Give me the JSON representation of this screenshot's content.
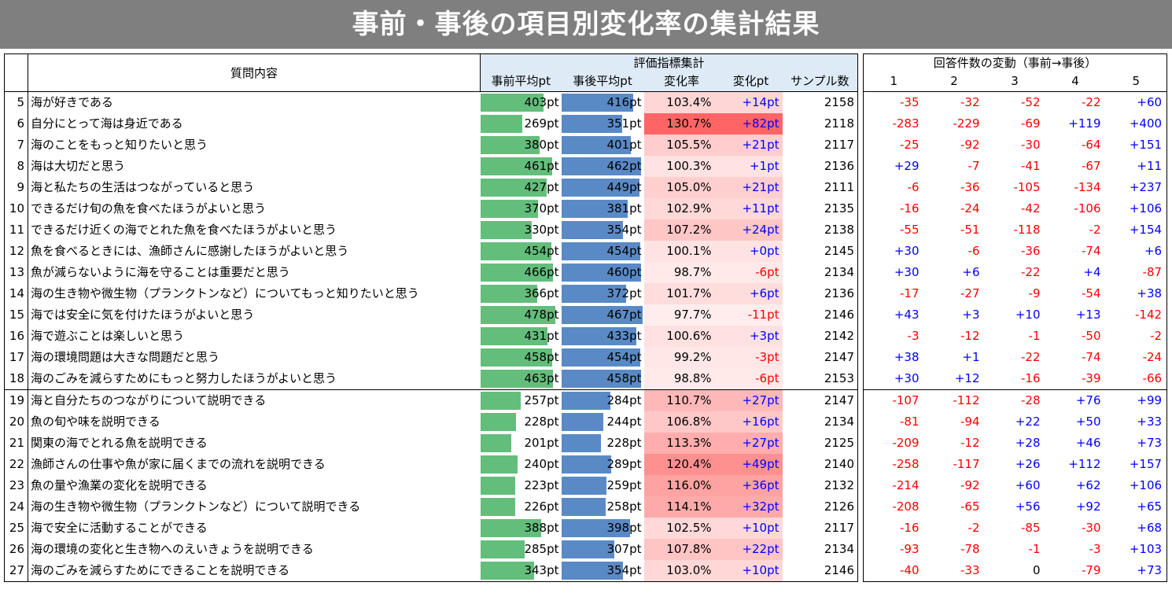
{
  "title": "事前・事後の項目別変化率の集計結果",
  "headers": {
    "question": "質問内容",
    "eval_group": "評価指標集計",
    "pre_avg": "事前平均pt",
    "post_avg": "事後平均pt",
    "rate": "変化率",
    "diff": "変化pt",
    "sample": "サンプル数",
    "response_group": "回答件数の変動（事前→事後）",
    "scale": [
      "1",
      "2",
      "3",
      "4",
      "5"
    ]
  },
  "rows": [
    {
      "no": "5",
      "q": "海が好きである",
      "pre": "403pt",
      "pre_v": 403,
      "post": "416pt",
      "post_v": 416,
      "rate": "103.4%",
      "rate_v": 103.4,
      "diff": "+14pt",
      "n": "2158",
      "r": [
        "-35",
        "-32",
        "-52",
        "-22",
        "+60"
      ]
    },
    {
      "no": "6",
      "q": "自分にとって海は身近である",
      "pre": "269pt",
      "pre_v": 269,
      "post": "351pt",
      "post_v": 351,
      "rate": "130.7%",
      "rate_v": 130.7,
      "diff": "+82pt",
      "n": "2118",
      "r": [
        "-283",
        "-229",
        "-69",
        "+119",
        "+400"
      ]
    },
    {
      "no": "7",
      "q": "海のことをもっと知りたいと思う",
      "pre": "380pt",
      "pre_v": 380,
      "post": "401pt",
      "post_v": 401,
      "rate": "105.5%",
      "rate_v": 105.5,
      "diff": "+21pt",
      "n": "2117",
      "r": [
        "-25",
        "-92",
        "-30",
        "-64",
        "+151"
      ]
    },
    {
      "no": "8",
      "q": "海は大切だと思う",
      "pre": "461pt",
      "pre_v": 461,
      "post": "462pt",
      "post_v": 462,
      "rate": "100.3%",
      "rate_v": 100.3,
      "diff": "+1pt",
      "n": "2136",
      "r": [
        "+29",
        "-7",
        "-41",
        "-67",
        "+11"
      ]
    },
    {
      "no": "9",
      "q": "海と私たちの生活はつながっていると思う",
      "pre": "427pt",
      "pre_v": 427,
      "post": "449pt",
      "post_v": 449,
      "rate": "105.0%",
      "rate_v": 105.0,
      "diff": "+21pt",
      "n": "2111",
      "r": [
        "-6",
        "-36",
        "-105",
        "-134",
        "+237"
      ]
    },
    {
      "no": "10",
      "q": "できるだけ旬の魚を食べたほうがよいと思う",
      "pre": "370pt",
      "pre_v": 370,
      "post": "381pt",
      "post_v": 381,
      "rate": "102.9%",
      "rate_v": 102.9,
      "diff": "+11pt",
      "n": "2135",
      "r": [
        "-16",
        "-24",
        "-42",
        "-106",
        "+106"
      ]
    },
    {
      "no": "11",
      "q": "できるだけ近くの海でとれた魚を食べたほうがよいと思う",
      "pre": "330pt",
      "pre_v": 330,
      "post": "354pt",
      "post_v": 354,
      "rate": "107.2%",
      "rate_v": 107.2,
      "diff": "+24pt",
      "n": "2138",
      "r": [
        "-55",
        "-51",
        "-118",
        "-2",
        "+154"
      ]
    },
    {
      "no": "12",
      "q": "魚を食べるときには、漁師さんに感謝したほうがよいと思う",
      "pre": "454pt",
      "pre_v": 454,
      "post": "454pt",
      "post_v": 454,
      "rate": "100.1%",
      "rate_v": 100.1,
      "diff": "+0pt",
      "n": "2145",
      "r": [
        "+30",
        "-6",
        "-36",
        "-74",
        "+6"
      ]
    },
    {
      "no": "13",
      "q": "魚が減らないように海を守ることは重要だと思う",
      "pre": "466pt",
      "pre_v": 466,
      "post": "460pt",
      "post_v": 460,
      "rate": "98.7%",
      "rate_v": 98.7,
      "diff": "-6pt",
      "n": "2134",
      "r": [
        "+30",
        "+6",
        "-22",
        "+4",
        "-87"
      ]
    },
    {
      "no": "14",
      "q": "海の生き物や微生物（プランクトンなど）についてもっと知りたいと思う",
      "pre": "366pt",
      "pre_v": 366,
      "post": "372pt",
      "post_v": 372,
      "rate": "101.7%",
      "rate_v": 101.7,
      "diff": "+6pt",
      "n": "2136",
      "r": [
        "-17",
        "-27",
        "-9",
        "-54",
        "+38"
      ]
    },
    {
      "no": "15",
      "q": "海では安全に気を付けたほうがよいと思う",
      "pre": "478pt",
      "pre_v": 478,
      "post": "467pt",
      "post_v": 467,
      "rate": "97.7%",
      "rate_v": 97.7,
      "diff": "-11pt",
      "n": "2146",
      "r": [
        "+43",
        "+3",
        "+10",
        "+13",
        "-142"
      ]
    },
    {
      "no": "16",
      "q": "海で遊ぶことは楽しいと思う",
      "pre": "431pt",
      "pre_v": 431,
      "post": "433pt",
      "post_v": 433,
      "rate": "100.6%",
      "rate_v": 100.6,
      "diff": "+3pt",
      "n": "2142",
      "r": [
        "-3",
        "-12",
        "-1",
        "-50",
        "-2"
      ]
    },
    {
      "no": "17",
      "q": "海の環境問題は大きな問題だと思う",
      "pre": "458pt",
      "pre_v": 458,
      "post": "454pt",
      "post_v": 454,
      "rate": "99.2%",
      "rate_v": 99.2,
      "diff": "-3pt",
      "n": "2147",
      "r": [
        "+38",
        "+1",
        "-22",
        "-74",
        "-24"
      ]
    },
    {
      "no": "18",
      "q": "海のごみを減らすためにもっと努力したほうがよいと思う",
      "pre": "463pt",
      "pre_v": 463,
      "post": "458pt",
      "post_v": 458,
      "rate": "98.8%",
      "rate_v": 98.8,
      "diff": "-6pt",
      "n": "2153",
      "r": [
        "+30",
        "+12",
        "-16",
        "-39",
        "-66"
      ]
    },
    {
      "no": "19",
      "q": "海と自分たちのつながりについて説明できる",
      "pre": "257pt",
      "pre_v": 257,
      "post": "284pt",
      "post_v": 284,
      "rate": "110.7%",
      "rate_v": 110.7,
      "diff": "+27pt",
      "n": "2147",
      "r": [
        "-107",
        "-112",
        "-28",
        "+76",
        "+99"
      ]
    },
    {
      "no": "20",
      "q": "魚の旬や味を説明できる",
      "pre": "228pt",
      "pre_v": 228,
      "post": "244pt",
      "post_v": 244,
      "rate": "106.8%",
      "rate_v": 106.8,
      "diff": "+16pt",
      "n": "2134",
      "r": [
        "-81",
        "-94",
        "+22",
        "+50",
        "+33"
      ]
    },
    {
      "no": "21",
      "q": "関東の海でとれる魚を説明できる",
      "pre": "201pt",
      "pre_v": 201,
      "post": "228pt",
      "post_v": 228,
      "rate": "113.3%",
      "rate_v": 113.3,
      "diff": "+27pt",
      "n": "2125",
      "r": [
        "-209",
        "-12",
        "+28",
        "+46",
        "+73"
      ]
    },
    {
      "no": "22",
      "q": "漁師さんの仕事や魚が家に届くまでの流れを説明できる",
      "pre": "240pt",
      "pre_v": 240,
      "post": "289pt",
      "post_v": 289,
      "rate": "120.4%",
      "rate_v": 120.4,
      "diff": "+49pt",
      "n": "2140",
      "r": [
        "-258",
        "-117",
        "+26",
        "+112",
        "+157"
      ]
    },
    {
      "no": "23",
      "q": "魚の量や漁業の変化を説明できる",
      "pre": "223pt",
      "pre_v": 223,
      "post": "259pt",
      "post_v": 259,
      "rate": "116.0%",
      "rate_v": 116.0,
      "diff": "+36pt",
      "n": "2132",
      "r": [
        "-214",
        "-92",
        "+60",
        "+62",
        "+106"
      ]
    },
    {
      "no": "24",
      "q": "海の生き物や微生物（プランクトンなど）について説明できる",
      "pre": "226pt",
      "pre_v": 226,
      "post": "258pt",
      "post_v": 258,
      "rate": "114.1%",
      "rate_v": 114.1,
      "diff": "+32pt",
      "n": "2126",
      "r": [
        "-208",
        "-65",
        "+56",
        "+92",
        "+65"
      ]
    },
    {
      "no": "25",
      "q": "海で安全に活動することができる",
      "pre": "388pt",
      "pre_v": 388,
      "post": "398pt",
      "post_v": 398,
      "rate": "102.5%",
      "rate_v": 102.5,
      "diff": "+10pt",
      "n": "2117",
      "r": [
        "-16",
        "-2",
        "-85",
        "-30",
        "+68"
      ]
    },
    {
      "no": "26",
      "q": "海の環境の変化と生き物へのえいきょうを説明できる",
      "pre": "285pt",
      "pre_v": 285,
      "post": "307pt",
      "post_v": 307,
      "rate": "107.8%",
      "rate_v": 107.8,
      "diff": "+22pt",
      "n": "2134",
      "r": [
        "-93",
        "-78",
        "-1",
        "-3",
        "+103"
      ]
    },
    {
      "no": "27",
      "q": "海のごみを減らすためにできることを説明できる",
      "pre": "343pt",
      "pre_v": 343,
      "post": "354pt",
      "post_v": 354,
      "rate": "103.0%",
      "rate_v": 103.0,
      "diff": "+10pt",
      "n": "2146",
      "r": [
        "-40",
        "-33",
        "0",
        "-79",
        "+73"
      ]
    }
  ]
}
